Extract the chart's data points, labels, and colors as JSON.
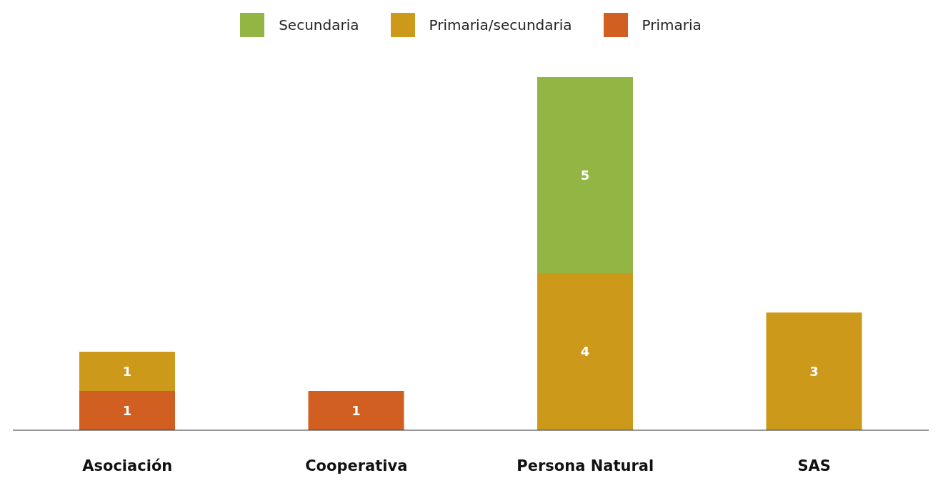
{
  "chart_data": {
    "type": "bar",
    "stacked": true,
    "categories": [
      "Asociación",
      "Cooperativa",
      "Persona Natural",
      "SAS"
    ],
    "series": [
      {
        "name": "Primaria",
        "color": "#d15f22",
        "values": [
          1,
          1,
          null,
          null
        ]
      },
      {
        "name": "Primaria/secundaria",
        "color": "#cc991a",
        "values": [
          1,
          null,
          4,
          3
        ]
      },
      {
        "name": "Secundaria",
        "color": "#92b543",
        "values": [
          null,
          null,
          5,
          null
        ]
      }
    ],
    "data_labels": true,
    "legend": "top",
    "grid": false
  }
}
